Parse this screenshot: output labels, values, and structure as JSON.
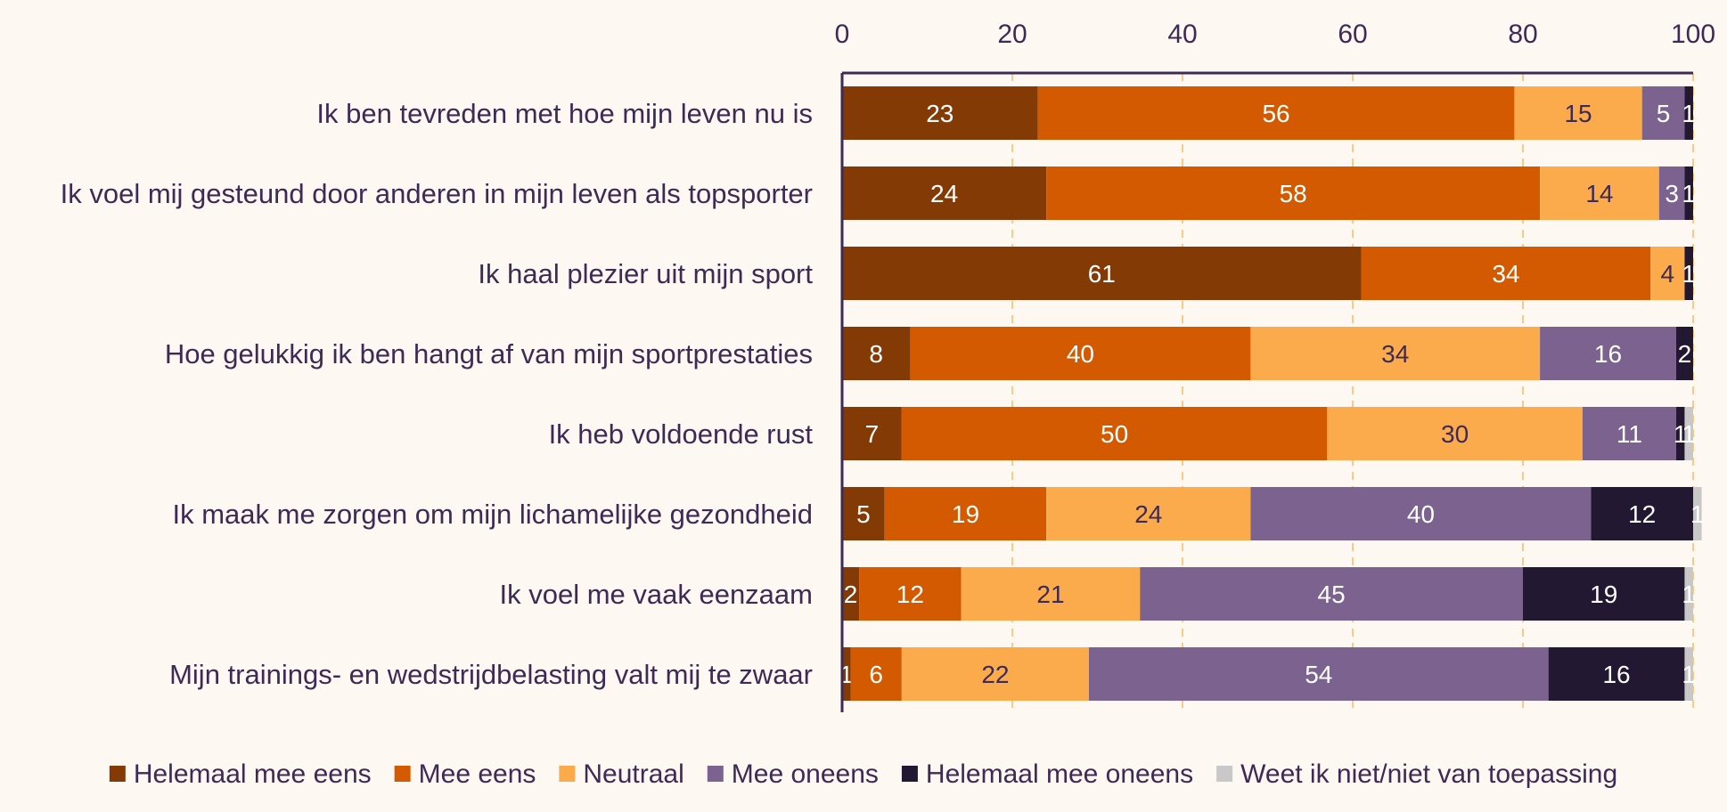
{
  "chart_data": {
    "type": "bar",
    "orientation": "horizontal",
    "stacked": true,
    "title": "",
    "xlabel": "",
    "ylabel": "",
    "xlim": [
      0,
      100
    ],
    "x_ticks": [
      0,
      20,
      40,
      60,
      80,
      100
    ],
    "grid": "vertical dashed",
    "legend_position": "bottom",
    "categories": [
      "Ik ben tevreden met hoe mijn leven nu is",
      "Ik voel mij gesteund door anderen in mijn leven als topsporter",
      "Ik haal plezier uit mijn sport",
      "Hoe gelukkig ik ben hangt af van mijn sportprestaties",
      "Ik heb voldoende rust",
      "Ik maak me zorgen om mijn lichamelijke gezondheid",
      "Ik voel me vaak eenzaam",
      "Mijn trainings- en wedstrijdbelasting valt mij te zwaar"
    ],
    "series": [
      {
        "name": "Helemaal mee eens",
        "color": "#843a05",
        "label_color": "#ffffff",
        "values": [
          23,
          24,
          61,
          8,
          7,
          5,
          2,
          1
        ]
      },
      {
        "name": "Mee eens",
        "color": "#d35a00",
        "label_color": "#ffffff",
        "values": [
          56,
          58,
          34,
          40,
          50,
          19,
          12,
          6
        ]
      },
      {
        "name": "Neutraal",
        "color": "#fbab4c",
        "label_color": "#3d2a55",
        "values": [
          15,
          14,
          4,
          34,
          30,
          24,
          21,
          22
        ]
      },
      {
        "name": "Mee oneens",
        "color": "#7b628f",
        "label_color": "#ffffff",
        "values": [
          5,
          3,
          0,
          16,
          11,
          40,
          45,
          54
        ]
      },
      {
        "name": "Helemaal mee oneens",
        "color": "#221831",
        "label_color": "#ffffff",
        "values": [
          1,
          1,
          1,
          2,
          1,
          12,
          19,
          16
        ]
      },
      {
        "name": "Weet ik niet/niet van toepassing",
        "color": "#c8c8c8",
        "label_color": "#ffffff",
        "values": [
          0,
          0,
          0,
          0,
          1,
          1,
          1,
          1
        ]
      }
    ]
  }
}
